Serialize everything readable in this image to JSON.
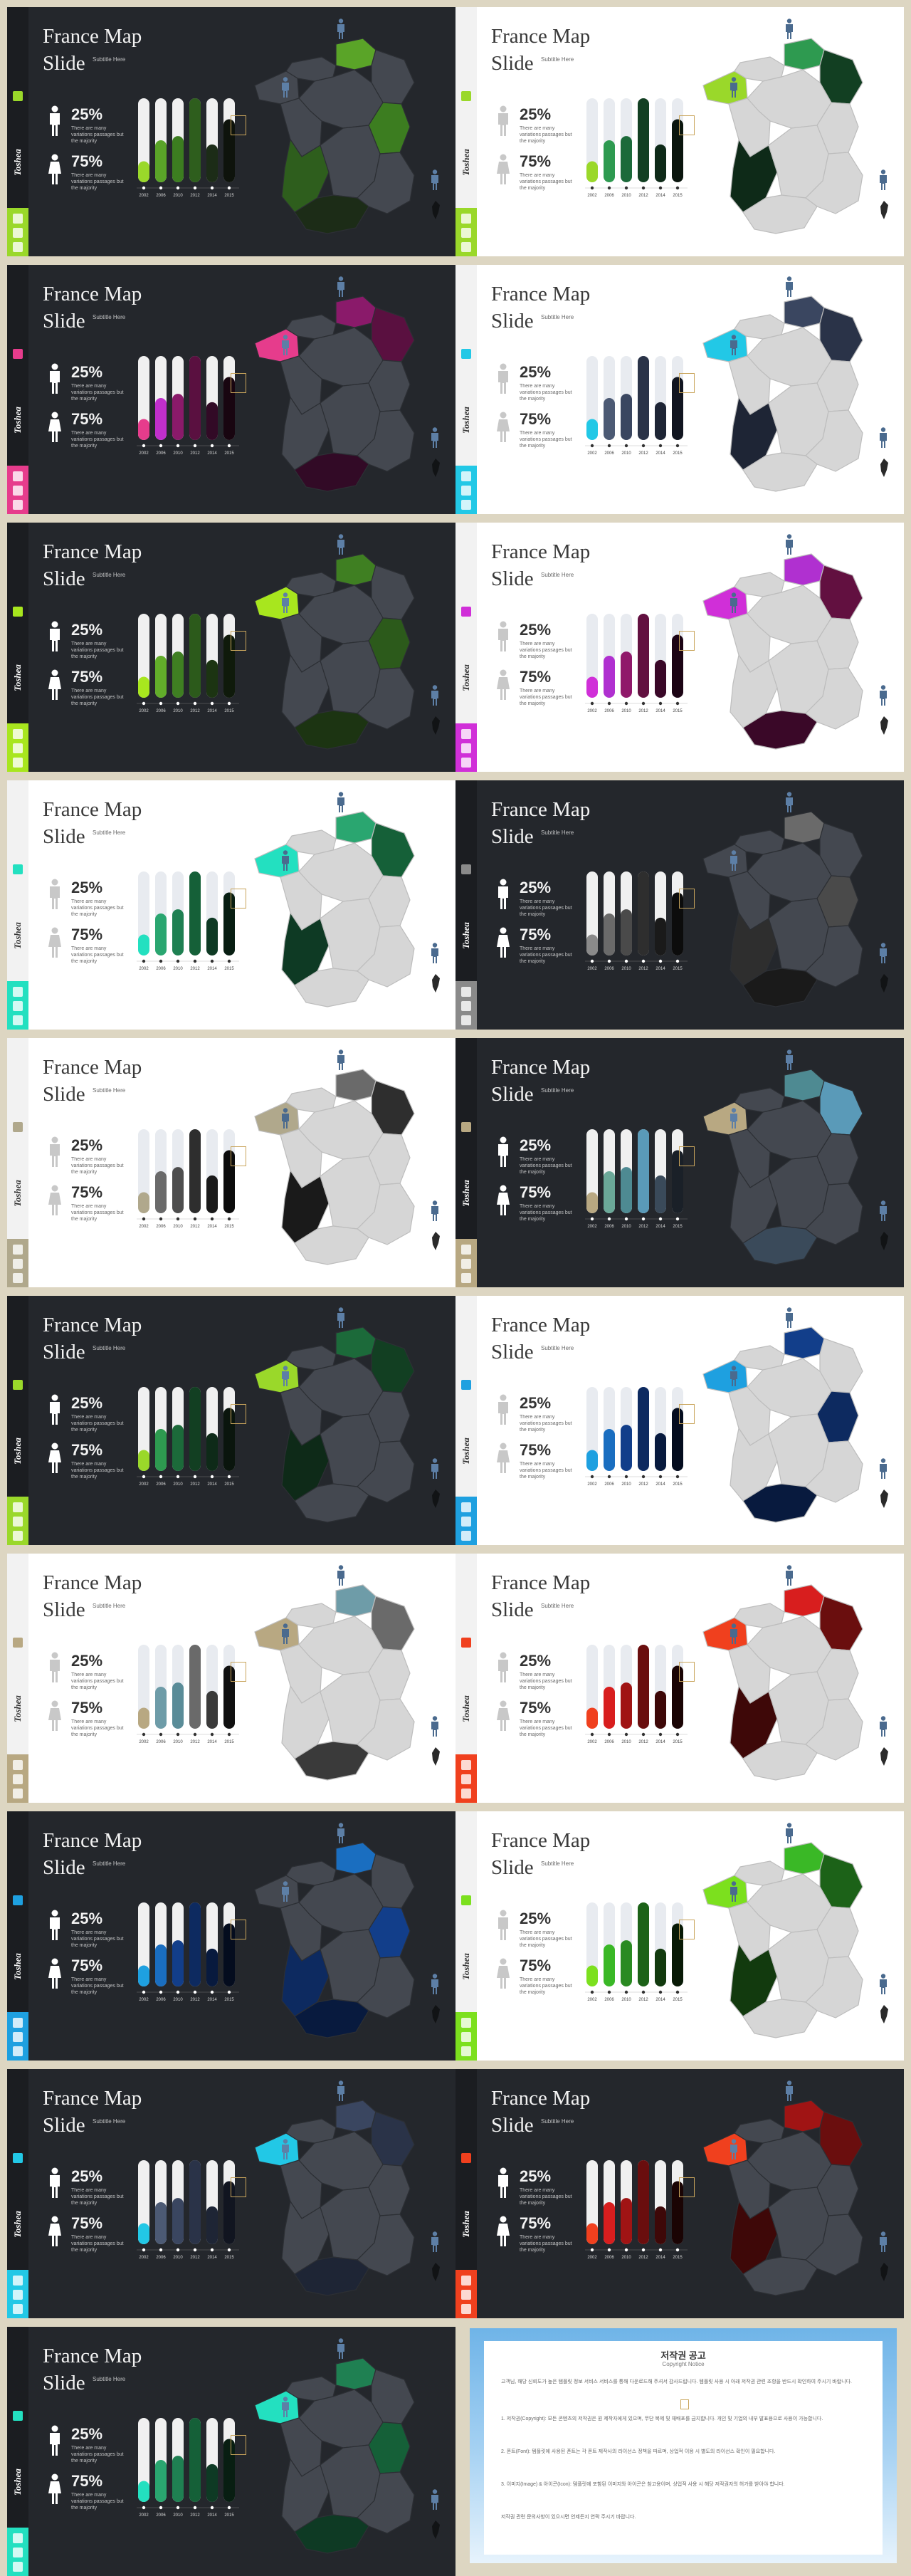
{
  "slide_text": {
    "title_line1": "France Map",
    "title_line2": "Slide",
    "subtitle": "Subtitle Here",
    "pct_top": "25%",
    "pct_bottom": "75%",
    "note_line1": "There are many",
    "note_line2": "variations passages but",
    "note_line3": "the majority",
    "brand": "Toshea",
    "years": [
      "2002",
      "2006",
      "2010",
      "2012",
      "2014",
      "2015"
    ]
  },
  "chart_data": {
    "type": "bar",
    "categories": [
      "2002",
      "2006",
      "2010",
      "2012",
      "2014",
      "2015"
    ],
    "values": [
      25,
      50,
      55,
      100,
      45,
      75
    ],
    "ylim": [
      0,
      100
    ]
  },
  "slides": [
    {
      "theme": "dark",
      "accent": "#9ad82a",
      "c": [
        "#9ad82a",
        "#5aa428",
        "#3c7d20",
        "#2e5e1d",
        "#1c2c17",
        "#0e130c"
      ]
    },
    {
      "theme": "light",
      "accent": "#9ad82a",
      "c": [
        "#9ad82a",
        "#2e9a50",
        "#1c6a3a",
        "#123f22",
        "#0e2a18",
        "#0a150d"
      ]
    },
    {
      "theme": "dark",
      "accent": "#e63c8c",
      "c": [
        "#e63c8c",
        "#c02fcc",
        "#8a1a6a",
        "#5a1040",
        "#320a26",
        "#180510"
      ]
    },
    {
      "theme": "light",
      "accent": "#22c8e6",
      "c": [
        "#22c8e6",
        "#4c5a74",
        "#3a4660",
        "#2a3348",
        "#1e2535",
        "#111520"
      ]
    },
    {
      "theme": "dark",
      "accent": "#a8e61e",
      "c": [
        "#a8e61e",
        "#62ad2a",
        "#3f7f22",
        "#2c5a1b",
        "#1c3412",
        "#0f1a0b"
      ]
    },
    {
      "theme": "light",
      "accent": "#d02fd8",
      "c": [
        "#d02fd8",
        "#b030d0",
        "#90186a",
        "#621040",
        "#3a0828",
        "#1c0414"
      ]
    },
    {
      "theme": "light",
      "accent": "#23e0c0",
      "c": [
        "#23e0c0",
        "#2aa670",
        "#1f8052",
        "#156038",
        "#0e3a24",
        "#081e12"
      ]
    },
    {
      "theme": "dark",
      "accent": "#8a8a8a",
      "c": [
        "#8a8a8a",
        "#6a6a6a",
        "#4a4a4a",
        "#2e2e2e",
        "#1a1a1a",
        "#0c0c0c"
      ]
    },
    {
      "theme": "light",
      "accent": "#b0a88c",
      "c": [
        "#b0a88c",
        "#6a6a6a",
        "#4e4e4e",
        "#2e2e2e",
        "#1a1a1a",
        "#0c0c0c"
      ]
    },
    {
      "theme": "dark",
      "accent": "#b8a882",
      "c": [
        "#b8a882",
        "#6ba898",
        "#4e8a92",
        "#5a9ab8",
        "#3a4a5a",
        "#1a2028"
      ]
    },
    {
      "theme": "dark",
      "accent": "#9ad82a",
      "c": [
        "#9ad82a",
        "#2e9a50",
        "#1c6a3a",
        "#123f22",
        "#0e2a18",
        "#0a150d"
      ]
    },
    {
      "theme": "light",
      "accent": "#1ea0e0",
      "c": [
        "#1ea0e0",
        "#1a6ec0",
        "#123e8a",
        "#0d2a60",
        "#081a3e",
        "#040c1e"
      ]
    },
    {
      "theme": "light",
      "accent": "#b8a882",
      "c": [
        "#b8a882",
        "#6e9ca8",
        "#5a8c98",
        "#6a6a6a",
        "#3a3a3a",
        "#101010"
      ]
    },
    {
      "theme": "light",
      "accent": "#f0401e",
      "c": [
        "#f0401e",
        "#d81e1e",
        "#a01414",
        "#6a0e0e",
        "#3e0808",
        "#1a0404"
      ]
    },
    {
      "theme": "dark",
      "accent": "#1ea0e0",
      "c": [
        "#1ea0e0",
        "#1a6ec0",
        "#123e8a",
        "#0d2a60",
        "#081a3e",
        "#040c1e"
      ]
    },
    {
      "theme": "light",
      "accent": "#7ce01e",
      "c": [
        "#7ce01e",
        "#3ab826",
        "#2a8a22",
        "#1c6218",
        "#123a0e",
        "#081a06"
      ]
    },
    {
      "theme": "dark",
      "accent": "#22c8e6",
      "c": [
        "#22c8e6",
        "#4c5a74",
        "#3a4660",
        "#2a3348",
        "#1e2535",
        "#111520"
      ]
    },
    {
      "theme": "dark",
      "accent": "#f0401e",
      "c": [
        "#f0401e",
        "#d81e1e",
        "#a01414",
        "#6a0e0e",
        "#3e0808",
        "#1a0404"
      ]
    },
    {
      "theme": "dark",
      "accent": "#23e0c0",
      "c": [
        "#23e0c0",
        "#2aa670",
        "#1f8052",
        "#156038",
        "#0e3a24",
        "#081e12"
      ]
    }
  ],
  "notice": {
    "title": "저작권 공고",
    "subtitle": "Copyright Notice",
    "p1": "고객님, 해당 신뢰도가 높은 템플릿 정보 서비스 서비스를 통해 다운로드해 주셔서 감사드립니다. 템플릿 사용 시 아래 저작권 관련 조항을 반드시 확인하여 주시기 바랍니다.",
    "p2": "1. 저작권(Copyright): 모든 콘텐츠의 저작권은 원 제작자에게 있으며, 무단 복제 및 재배포를 금지합니다. 개인 및 기업의 내부 발표용으로 사용이 가능합니다.",
    "p3": "2. 폰트(Font): 템플릿에 사용된 폰트는 각 폰트 제작사의 라이선스 정책을 따르며, 상업적 이용 시 별도의 라이선스 확인이 필요합니다.",
    "p4": "3. 이미지(Image) & 아이콘(Icon): 템플릿에 포함된 이미지와 아이콘은 참고용이며, 상업적 사용 시 해당 저작권자의 허가를 받아야 합니다.",
    "p5": "저작권 관련 문의사항이 있으시면 언제든지 연락 주시기 바랍니다."
  }
}
